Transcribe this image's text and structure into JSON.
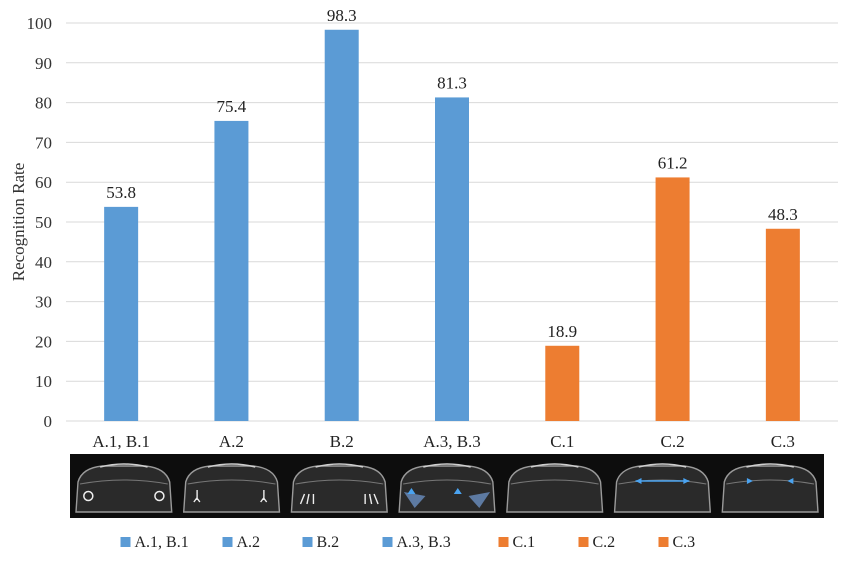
{
  "chart_data": {
    "type": "bar",
    "categories": [
      "A.1, B.1",
      "A.2",
      "B.2",
      "A.3, B.3",
      "C.1",
      "C.2",
      "C.3"
    ],
    "values": [
      53.8,
      75.4,
      98.3,
      81.3,
      18.9,
      61.2,
      48.3
    ],
    "colors": [
      "#5b9bd5",
      "#5b9bd5",
      "#5b9bd5",
      "#5b9bd5",
      "#ed7d31",
      "#ed7d31",
      "#ed7d31"
    ],
    "title": "",
    "xlabel": "",
    "ylabel": "Recognition Rate",
    "ylim": [
      0,
      100
    ],
    "yticks": [
      0,
      10,
      20,
      30,
      40,
      50,
      60,
      70,
      80,
      90,
      100
    ],
    "grid": true,
    "legend": {
      "placement": "bottom",
      "entries": [
        "A.1, B.1",
        "A.2",
        "B.2",
        "A.3, B.3",
        "C.1",
        "C.2",
        "C.3"
      ]
    },
    "image_strip_icons": [
      "car-lamp-wheel-icon",
      "car-lamp-pedestrian-icon",
      "car-lamp-crosswalk-icon",
      "car-lamp-triangle-icon",
      "car-lamp-plain-icon",
      "car-lamp-arrows-icon",
      "car-lamp-arrows-in-icon"
    ]
  }
}
